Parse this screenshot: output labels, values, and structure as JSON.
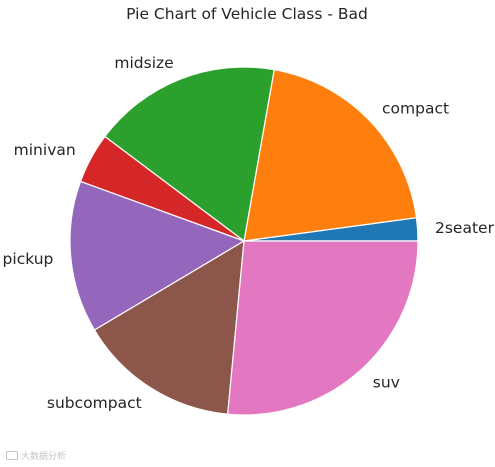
{
  "chart_data": {
    "type": "pie",
    "title": "Pie Chart of Vehicle Class - Bad",
    "categories": [
      "2seater",
      "compact",
      "midsize",
      "minivan",
      "pickup",
      "subcompact",
      "suv"
    ],
    "values": [
      5,
      47,
      41,
      11,
      33,
      35,
      62
    ],
    "colors": [
      "#1f77b4",
      "#ff7f0e",
      "#2ca02c",
      "#d62728",
      "#9467bd",
      "#8c564b",
      "#e377c2"
    ],
    "start_angle_deg": 0,
    "direction": "counterclockwise"
  },
  "watermark": {
    "text": "大数据分析"
  }
}
